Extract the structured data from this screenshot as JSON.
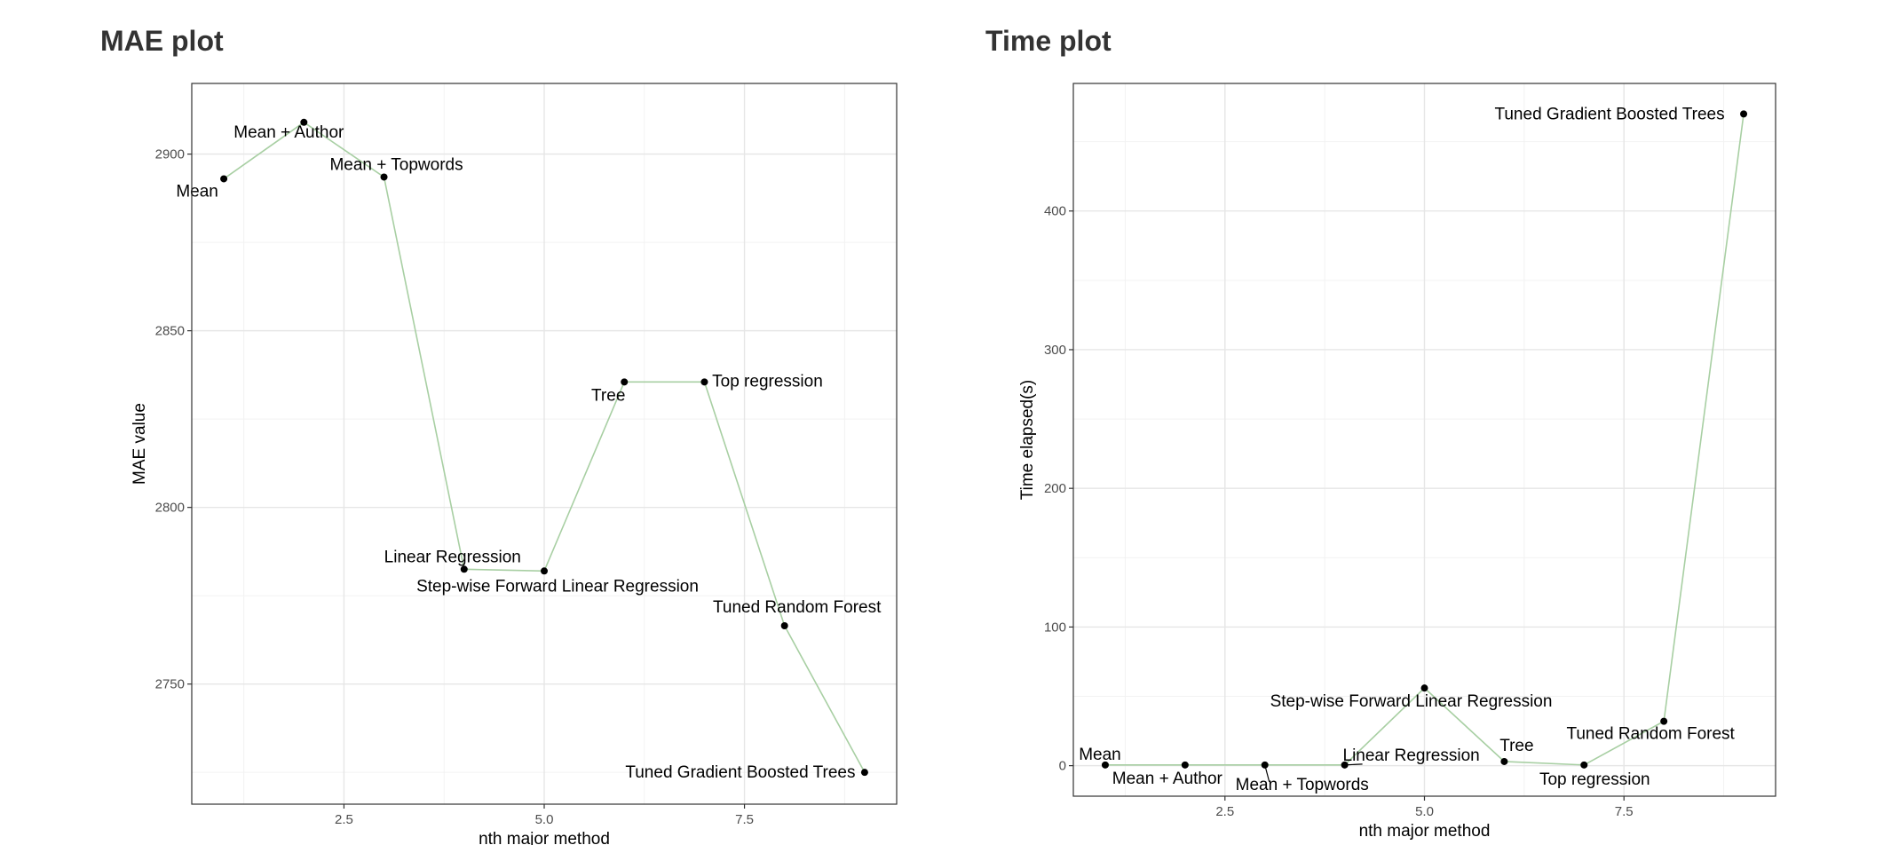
{
  "chart_data": [
    {
      "type": "line",
      "title": "MAE plot",
      "xlabel": "nth major method",
      "ylabel": "MAE value",
      "xlim": [
        0.6,
        9.4
      ],
      "ylim": [
        2716,
        2920
      ],
      "xticks": [
        2.5,
        5.0,
        7.5
      ],
      "xtick_labels": [
        "2.5",
        "5.0",
        "7.5"
      ],
      "yticks": [
        2750,
        2800,
        2850,
        2900
      ],
      "ytick_labels": [
        "2750",
        "2800",
        "2850",
        "2900"
      ],
      "grid": true,
      "line_color": "#a8cfa3",
      "point_color": "#000000",
      "x": [
        1,
        2,
        3,
        4,
        5,
        6,
        7,
        8,
        9
      ],
      "y": [
        2893,
        2909,
        2893.5,
        2782.5,
        2782,
        2835.5,
        2835.5,
        2766.5,
        2725
      ],
      "labels": [
        "Mean",
        "Mean + Author",
        "Mean + Topwords",
        "Linear Regression",
        "Step-wise Forward Linear Regression",
        "Tree",
        "Top regression",
        "Tuned Random Forest",
        "Tuned Gradient Boosted Trees"
      ]
    },
    {
      "type": "line",
      "title": "Time plot",
      "xlabel": "nth major method",
      "ylabel": "Time elapsed(s)",
      "xlim": [
        0.6,
        9.4
      ],
      "ylim": [
        -22,
        492
      ],
      "xticks": [
        2.5,
        5.0,
        7.5
      ],
      "xtick_labels": [
        "2.5",
        "5.0",
        "7.5"
      ],
      "yticks": [
        0,
        100,
        200,
        300,
        400
      ],
      "ytick_labels": [
        "0",
        "100",
        "200",
        "300",
        "400"
      ],
      "grid": true,
      "line_color": "#a8cfa3",
      "point_color": "#000000",
      "x": [
        1,
        2,
        3,
        4,
        5,
        6,
        7,
        8,
        9
      ],
      "y": [
        0.5,
        0.5,
        0.5,
        0.5,
        56,
        3,
        0.5,
        32,
        470
      ],
      "labels": [
        "Mean",
        "Mean + Author",
        "Mean + Topwords",
        "Linear Regression",
        "Step-wise Forward Linear Regression",
        "Tree",
        "Top regression",
        "Tuned Random Forest",
        "Tuned Gradient Boosted Trees"
      ]
    }
  ]
}
